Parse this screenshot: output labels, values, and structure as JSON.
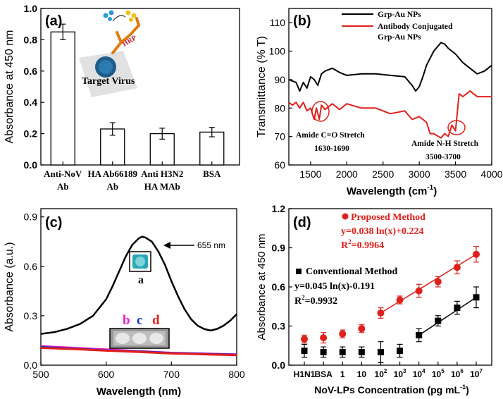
{
  "chart_data": [
    {
      "type": "bar",
      "panel_label": "(a)",
      "ylabel": "Absorbance at 450 nm",
      "ylim": [
        0.0,
        1.0
      ],
      "yticks": [
        "0.0",
        "0.2",
        "0.4",
        "0.6",
        "0.8",
        "1.0"
      ],
      "categories": [
        {
          "line1": "Anti-NoV",
          "line2": "Ab"
        },
        {
          "line1": "HA Ab66189",
          "line2": "Ab"
        },
        {
          "line1": "Anti H3N2",
          "line2": "HA MAb"
        },
        {
          "line1": "BSA",
          "line2": ""
        }
      ],
      "values": [
        0.85,
        0.23,
        0.2,
        0.21
      ],
      "errors": [
        0.05,
        0.04,
        0.035,
        0.03
      ],
      "inset_labels": {
        "target": "Target Virus",
        "hrp": "HRP"
      }
    },
    {
      "type": "line",
      "panel_label": "(b)",
      "xlabel": "Wavelength (cm",
      "xlabel_sup": "-1",
      "xlabel_end": ")",
      "ylabel": "Transmittance (% T)",
      "xlim": [
        1200,
        4000
      ],
      "ylim": [
        60,
        115
      ],
      "xticks": [
        "1500",
        "2000",
        "2500",
        "3000",
        "3500",
        "4000"
      ],
      "yticks": [
        "60",
        "70",
        "80",
        "90",
        "100",
        "110"
      ],
      "series": [
        {
          "name": "Grp-Au NPs",
          "color": "#000000",
          "x": [
            1200,
            1300,
            1350,
            1400,
            1450,
            1500,
            1550,
            1600,
            1650,
            1700,
            1800,
            1900,
            2000,
            2200,
            2400,
            2600,
            2800,
            2900,
            2950,
            3000,
            3050,
            3100,
            3200,
            3300,
            3350,
            3400,
            3500,
            3600,
            3700,
            3800,
            3900,
            4000
          ],
          "y": [
            90,
            89,
            86,
            89,
            87,
            91,
            90,
            88,
            92,
            93,
            94,
            92.5,
            91.5,
            92,
            92,
            91.5,
            91,
            88,
            86,
            87.5,
            91,
            95,
            100,
            103,
            102.5,
            101,
            99,
            96,
            94,
            92,
            93,
            95
          ]
        },
        {
          "name": "Antibody Conjugated Grp-Au NPs",
          "color": "#e0201a",
          "x": [
            1200,
            1250,
            1300,
            1350,
            1400,
            1450,
            1500,
            1550,
            1580,
            1620,
            1650,
            1700,
            1800,
            1900,
            2000,
            2200,
            2400,
            2600,
            2800,
            2900,
            3000,
            3100,
            3150,
            3200,
            3300,
            3350,
            3400,
            3450,
            3500,
            3550,
            3600,
            3700,
            3800,
            3900,
            4000
          ],
          "y": [
            82,
            81,
            82,
            80,
            82,
            79,
            80,
            76,
            80,
            76,
            81,
            79.5,
            81.5,
            79.5,
            81.5,
            80,
            80,
            78,
            79,
            76,
            77,
            75,
            71,
            71,
            69.5,
            71,
            70,
            74,
            72,
            85,
            84,
            86,
            84,
            84,
            84
          ]
        }
      ],
      "annotations": [
        {
          "line1": "Amide C=O Stretch",
          "line2": "1630-1690"
        },
        {
          "line1": "Amide N-H Stretch",
          "line2": "3500-3700"
        }
      ]
    },
    {
      "type": "line",
      "panel_label": "(c)",
      "xlabel": "Wavelength (nm)",
      "ylabel": "Absorbance (a.u.)",
      "xlim": [
        500,
        800
      ],
      "ylim": [
        0.0,
        0.95
      ],
      "xticks": [
        "500",
        "600",
        "700",
        "800"
      ],
      "yticks": [
        "0.0",
        "0.3",
        "0.6",
        "0.9"
      ],
      "series": [
        {
          "name": "a",
          "color": "#000000",
          "x": [
            500,
            520,
            540,
            560,
            580,
            600,
            610,
            620,
            630,
            640,
            650,
            655,
            660,
            670,
            680,
            690,
            700,
            710,
            720,
            730,
            740,
            750,
            760,
            770,
            780,
            790,
            800
          ],
          "y": [
            0.19,
            0.2,
            0.22,
            0.25,
            0.3,
            0.4,
            0.48,
            0.57,
            0.66,
            0.73,
            0.77,
            0.78,
            0.775,
            0.75,
            0.69,
            0.61,
            0.51,
            0.42,
            0.34,
            0.28,
            0.24,
            0.22,
            0.21,
            0.22,
            0.24,
            0.27,
            0.31
          ]
        },
        {
          "name": "b",
          "color": "#f019c8",
          "x": [
            500,
            550,
            600,
            650,
            700,
            750,
            800
          ],
          "y": [
            0.115,
            0.105,
            0.095,
            0.085,
            0.075,
            0.07,
            0.065
          ]
        },
        {
          "name": "c",
          "color": "#1a2fcc",
          "x": [
            500,
            550,
            600,
            650,
            700,
            750,
            800
          ],
          "y": [
            0.11,
            0.1,
            0.09,
            0.083,
            0.073,
            0.068,
            0.063
          ]
        },
        {
          "name": "d",
          "color": "#e0201a",
          "x": [
            500,
            550,
            600,
            650,
            700,
            750,
            800
          ],
          "y": [
            0.105,
            0.098,
            0.088,
            0.08,
            0.071,
            0.066,
            0.061
          ]
        }
      ],
      "peak_label": "655 nm",
      "sample_labels": {
        "a": "a",
        "b": "b",
        "c": "c",
        "d": "d"
      }
    },
    {
      "type": "scatter",
      "panel_label": "(d)",
      "xlabel": "NoV-LPs Concentration (pg mL",
      "xlabel_sup": "-1",
      "xlabel_end": ")",
      "ylabel": "Absorbance at 450 nm",
      "ylim": [
        0.0,
        1.2
      ],
      "yticks": [
        "0.0",
        "0.3",
        "0.6",
        "0.9",
        "1.2"
      ],
      "xticks": [
        {
          "base": "H1N1",
          "exp": ""
        },
        {
          "base": "BSA",
          "exp": ""
        },
        {
          "base": "1",
          "exp": ""
        },
        {
          "base": "10",
          "exp": ""
        },
        {
          "base": "10",
          "exp": "2"
        },
        {
          "base": "10",
          "exp": "3"
        },
        {
          "base": "10",
          "exp": "4"
        },
        {
          "base": "10",
          "exp": "5"
        },
        {
          "base": "10",
          "exp": "6"
        },
        {
          "base": "10",
          "exp": "7"
        }
      ],
      "series": [
        {
          "name": "Proposed Method",
          "color": "#e0201a",
          "marker": "circle",
          "equation": "y=0.038 ln(x)+0.224",
          "r2_label": "R",
          "r2_sup": "2",
          "r2_value": "=0.9964",
          "values": [
            0.2,
            0.21,
            0.24,
            0.28,
            0.4,
            0.5,
            0.57,
            0.64,
            0.75,
            0.85
          ],
          "errors": [
            0.03,
            0.04,
            0.03,
            0.03,
            0.04,
            0.03,
            0.05,
            0.04,
            0.05,
            0.06
          ],
          "fit_range": [
            4,
            9
          ]
        },
        {
          "name": "Conventional Method",
          "color": "#000000",
          "marker": "square",
          "equation": "y=0.045 ln(x)-0.191",
          "r2_label": "R",
          "r2_sup": "2",
          "r2_value": "=0.9932",
          "values": [
            0.11,
            0.1,
            0.1,
            0.1,
            0.1,
            0.11,
            0.23,
            0.34,
            0.44,
            0.52
          ],
          "errors": [
            0.05,
            0.04,
            0.04,
            0.04,
            0.08,
            0.05,
            0.05,
            0.04,
            0.05,
            0.08
          ],
          "fit_range": [
            6,
            9
          ]
        }
      ]
    }
  ]
}
